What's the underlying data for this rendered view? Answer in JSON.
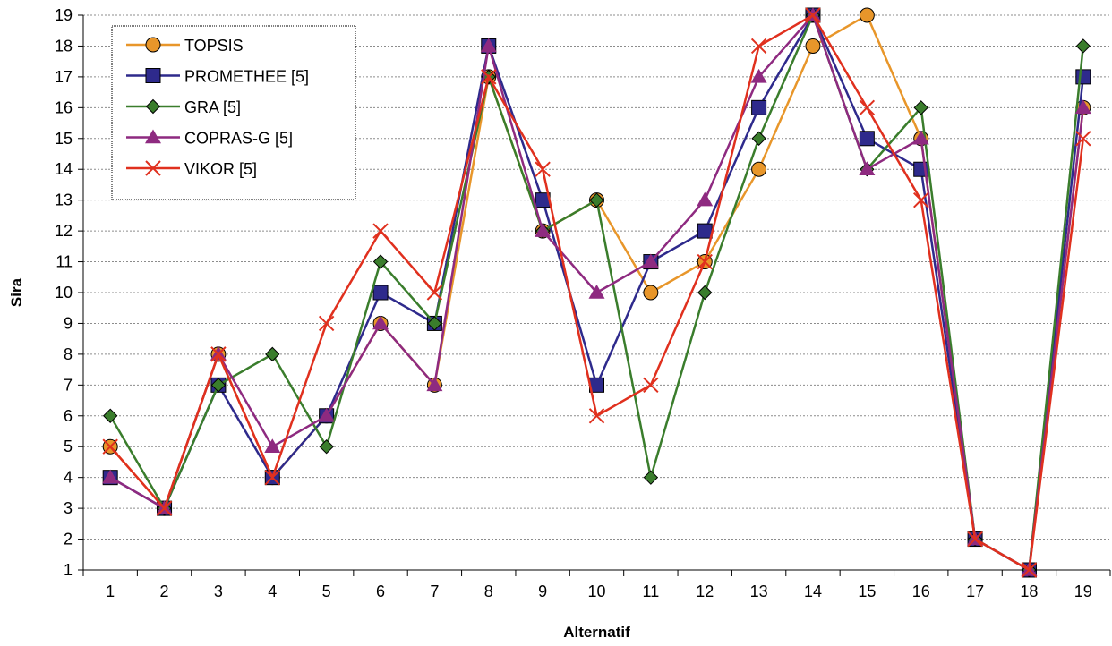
{
  "chart_data": {
    "type": "line",
    "title": "",
    "xlabel": "Alternatif",
    "ylabel": "Sira",
    "ylim": [
      1,
      19
    ],
    "grid": "horizontal dashed",
    "legend_position": "top-left",
    "x": [
      1,
      2,
      3,
      4,
      5,
      6,
      7,
      8,
      9,
      10,
      11,
      12,
      13,
      14,
      15,
      16,
      17,
      18,
      19
    ],
    "series": [
      {
        "name": "TOPSIS",
        "color": "#e8962a",
        "marker": "circle",
        "values": [
          5,
          3,
          8,
          4,
          6,
          9,
          7,
          17,
          12,
          13,
          10,
          11,
          14,
          18,
          19,
          15,
          2,
          1,
          16
        ]
      },
      {
        "name": "PROMETHEE [5]",
        "color": "#2e2a8c",
        "marker": "square",
        "values": [
          4,
          3,
          7,
          4,
          6,
          10,
          9,
          18,
          13,
          7,
          11,
          12,
          16,
          19,
          15,
          14,
          2,
          1,
          17
        ]
      },
      {
        "name": "GRA [5]",
        "color": "#3a7d2c",
        "marker": "diamond",
        "values": [
          6,
          3,
          7,
          8,
          5,
          11,
          9,
          17,
          12,
          13,
          4,
          10,
          15,
          19,
          14,
          16,
          2,
          1,
          18
        ]
      },
      {
        "name": "COPRAS-G [5]",
        "color": "#8e2a80",
        "marker": "triangle",
        "values": [
          4,
          3,
          8,
          5,
          6,
          9,
          7,
          18,
          12,
          10,
          11,
          13,
          17,
          19,
          14,
          15,
          2,
          1,
          16
        ]
      },
      {
        "name": "VIKOR [5]",
        "color": "#e0301e",
        "marker": "x",
        "values": [
          5,
          3,
          8,
          4,
          9,
          12,
          10,
          17,
          14,
          6,
          7,
          11,
          18,
          19,
          16,
          13,
          2,
          1,
          15
        ]
      }
    ]
  }
}
